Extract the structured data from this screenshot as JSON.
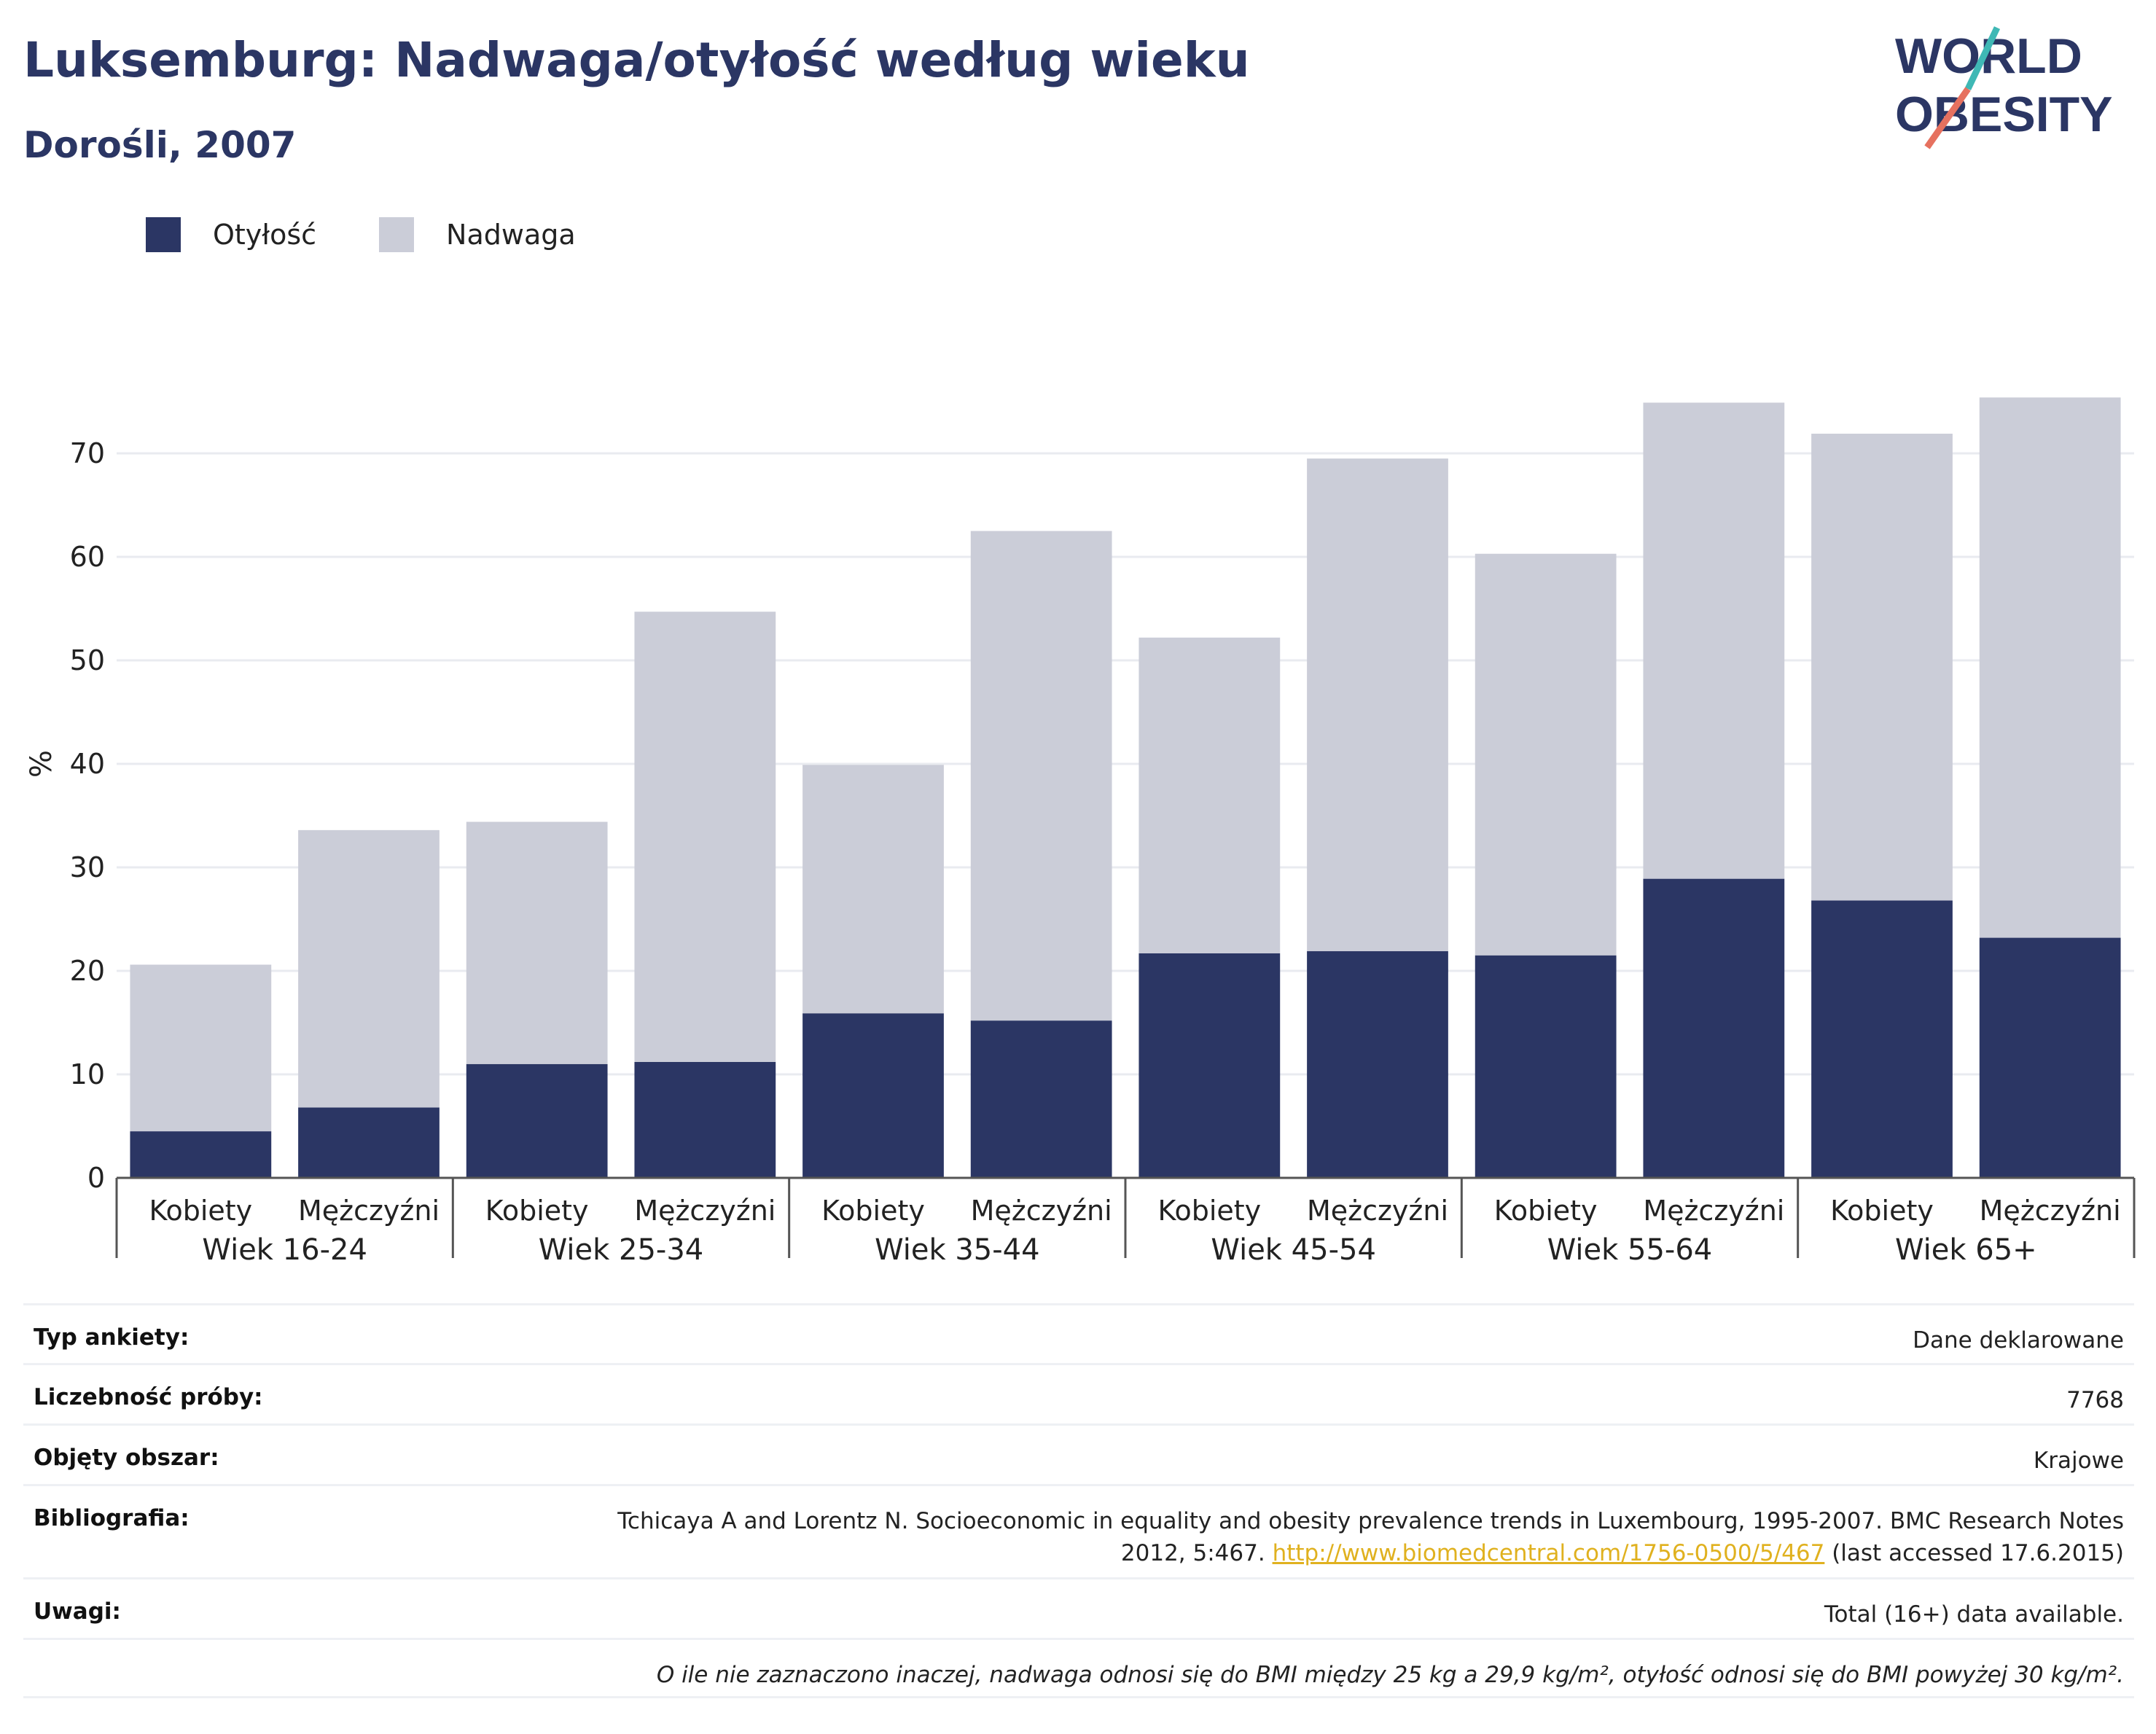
{
  "header": {
    "title": "Luksemburg: Nadwaga/otyłość według wieku",
    "subtitle": "Dorośli, 2007"
  },
  "logo": {
    "line1": "WORLD",
    "line2": "OBESITY"
  },
  "legend": {
    "items": [
      {
        "label": "Otyłość",
        "color": "#2b3664"
      },
      {
        "label": "Nadwaga",
        "color": "#cbcdd8"
      }
    ]
  },
  "chart_data": {
    "type": "bar",
    "stacked": true,
    "ylabel": "%",
    "ylim": [
      0,
      80
    ],
    "yticks": [
      0,
      10,
      20,
      30,
      40,
      50,
      60,
      70
    ],
    "grid": true,
    "legend_position": "top-left",
    "groups": [
      "Wiek 16-24",
      "Wiek 25-34",
      "Wiek 35-44",
      "Wiek 45-54",
      "Wiek 55-64",
      "Wiek 65+"
    ],
    "subcategories": [
      "Kobiety",
      "Mężczyźni"
    ],
    "series": [
      {
        "name": "Otyłość",
        "color": "#2b3664",
        "values": [
          4.5,
          6.8,
          11.0,
          11.2,
          15.9,
          15.2,
          21.7,
          21.9,
          21.5,
          28.9,
          26.8,
          23.2
        ]
      },
      {
        "name": "Nadwaga",
        "color": "#cbcdd8",
        "values": [
          16.1,
          26.8,
          23.4,
          43.5,
          24.0,
          47.3,
          30.5,
          47.6,
          38.8,
          46.0,
          45.1,
          52.2
        ]
      }
    ]
  },
  "info": {
    "rows": [
      {
        "key": "Typ ankiety:",
        "value": "Dane deklarowane"
      },
      {
        "key": "Liczebność próby:",
        "value": "7768"
      },
      {
        "key": "Objęty obszar:",
        "value": "Krajowe"
      }
    ],
    "bibliography": {
      "key": "Bibliografia:",
      "text_line1": "Tchicaya A and Lorentz N. Socioeconomic in equality and obesity prevalence trends in Luxembourg, 1995-2007. BMC Research Notes",
      "text_line2_pre": "2012, 5:467.",
      "link": "http://www.biomedcentral.com/1756-0500/5/467",
      "text_line2_post": "(last accessed 17.6.2015)"
    },
    "notes": {
      "key": "Uwagi:",
      "value": "Total (16+) data available."
    },
    "footnote": "O ile nie zaznaczono inaczej, nadwaga odnosi się do BMI między 25 kg a 29,9 kg/m², otyłość odnosi się do BMI powyżej 30 kg/m²."
  }
}
